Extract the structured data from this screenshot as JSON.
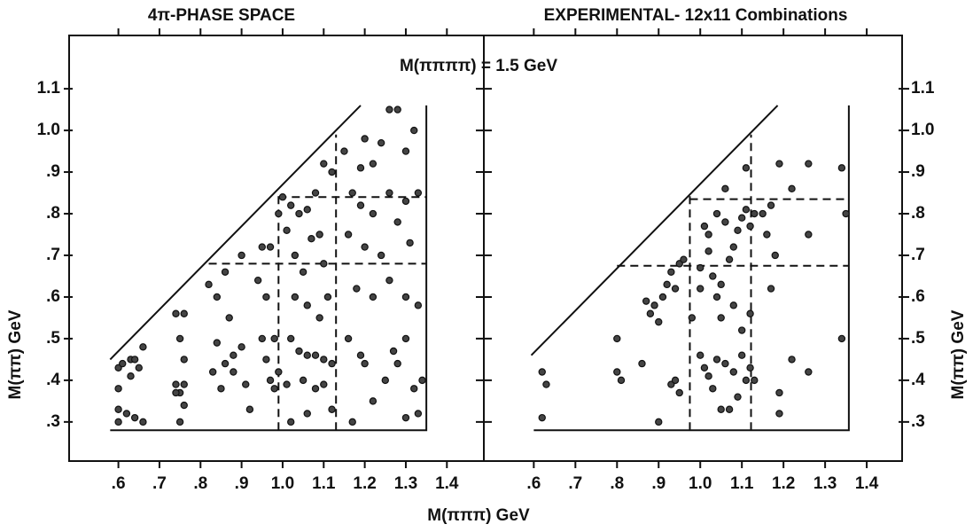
{
  "chart_data": [
    {
      "type": "scatter",
      "title": "4π-PHASE SPACE",
      "annotation": "M(ππππ) = 1.5 GeV",
      "xlabel": "M(πππ) GeV",
      "ylabel": "M(ππ) GeV",
      "xlim": [
        0.48,
        1.49
      ],
      "ylim": [
        0.206,
        1.228
      ],
      "xticks": [
        {
          "value": 0.6,
          "label": ".6"
        },
        {
          "value": 0.7,
          "label": ".7"
        },
        {
          "value": 0.8,
          "label": ".8"
        },
        {
          "value": 0.9,
          "label": ".9"
        },
        {
          "value": 1.0,
          "label": "1.0"
        },
        {
          "value": 1.1,
          "label": "1.1"
        },
        {
          "value": 1.2,
          "label": "1.2"
        },
        {
          "value": 1.3,
          "label": "1.3"
        },
        {
          "value": 1.4,
          "label": "1.4"
        }
      ],
      "yticks": [
        {
          "value": 0.3,
          "label": ".3"
        },
        {
          "value": 0.4,
          "label": ".4"
        },
        {
          "value": 0.5,
          "label": ".5"
        },
        {
          "value": 0.6,
          "label": ".6"
        },
        {
          "value": 0.7,
          "label": ".7"
        },
        {
          "value": 0.8,
          "label": ".8"
        },
        {
          "value": 0.9,
          "label": ".9"
        },
        {
          "value": 1.0,
          "label": "1.0"
        },
        {
          "value": 1.1,
          "label": "1.1"
        }
      ],
      "boundary_x": [
        0.58,
        1.19,
        null,
        0.58,
        1.35,
        1.35
      ],
      "boundary_y": [
        0.45,
        1.06,
        null,
        0.28,
        0.28,
        1.06
      ],
      "dashed": [
        {
          "x": [
            0.99,
            0.99
          ],
          "y": [
            0.28,
            0.85
          ]
        },
        {
          "x": [
            1.13,
            1.13
          ],
          "y": [
            0.28,
            0.99
          ]
        },
        {
          "x": [
            0.82,
            1.35
          ],
          "y": [
            0.68,
            0.68
          ]
        },
        {
          "x": [
            0.99,
            1.35
          ],
          "y": [
            0.84,
            0.84
          ]
        }
      ],
      "x": [
        0.6,
        0.61,
        0.63,
        0.64,
        0.66,
        0.6,
        0.63,
        0.65,
        0.6,
        0.62,
        0.64,
        0.66,
        0.6,
        0.74,
        0.76,
        0.75,
        0.76,
        0.74,
        0.76,
        0.75,
        0.76,
        0.75,
        0.74,
        0.82,
        0.84,
        0.86,
        0.83,
        0.85,
        0.84,
        0.87,
        0.88,
        0.86,
        0.9,
        0.9,
        0.92,
        0.88,
        0.91,
        0.95,
        0.97,
        0.94,
        0.96,
        0.95,
        0.98,
        0.96,
        0.99,
        0.98,
        0.97,
        0.99,
        1.0,
        1.01,
        1.02,
        1.04,
        1.06,
        1.03,
        1.05,
        1.07,
        1.09,
        1.1,
        1.12,
        1.08,
        1.1,
        1.03,
        1.06,
        1.02,
        1.04,
        1.06,
        1.08,
        1.1,
        1.12,
        1.05,
        1.08,
        1.1,
        1.12,
        1.02,
        1.06,
        1.09,
        1.11,
        1.01,
        1.15,
        1.17,
        1.19,
        1.2,
        1.22,
        1.24,
        1.26,
        1.28,
        1.3,
        1.32,
        1.19,
        1.22,
        1.26,
        1.3,
        1.33,
        1.16,
        1.2,
        1.24,
        1.28,
        1.31,
        1.18,
        1.22,
        1.26,
        1.3,
        1.33,
        1.16,
        1.19,
        1.2,
        1.22,
        1.25,
        1.28,
        1.3,
        1.32,
        1.34,
        1.3,
        1.33,
        1.17,
        1.27
      ],
      "values": [
        0.43,
        0.44,
        0.45,
        0.45,
        0.48,
        0.38,
        0.41,
        0.43,
        0.33,
        0.32,
        0.31,
        0.3,
        0.3,
        0.56,
        0.56,
        0.5,
        0.45,
        0.39,
        0.39,
        0.37,
        0.34,
        0.3,
        0.37,
        0.63,
        0.6,
        0.66,
        0.42,
        0.38,
        0.49,
        0.55,
        0.46,
        0.44,
        0.7,
        0.48,
        0.33,
        0.42,
        0.39,
        0.72,
        0.72,
        0.64,
        0.6,
        0.5,
        0.5,
        0.45,
        0.42,
        0.38,
        0.4,
        0.8,
        0.84,
        0.76,
        0.82,
        0.8,
        0.81,
        0.7,
        0.66,
        0.74,
        0.75,
        0.92,
        0.9,
        0.85,
        0.68,
        0.6,
        0.58,
        0.5,
        0.47,
        0.46,
        0.46,
        0.45,
        0.44,
        0.4,
        0.38,
        0.39,
        0.33,
        0.3,
        0.32,
        0.55,
        0.6,
        0.39,
        0.95,
        0.85,
        0.91,
        0.98,
        0.92,
        0.97,
        1.05,
        1.05,
        0.95,
        1.0,
        0.82,
        0.8,
        0.85,
        0.83,
        0.85,
        0.75,
        0.72,
        0.7,
        0.78,
        0.73,
        0.62,
        0.6,
        0.64,
        0.6,
        0.58,
        0.5,
        0.46,
        0.44,
        0.35,
        0.4,
        0.44,
        0.5,
        0.38,
        0.4,
        0.31,
        0.32,
        0.3,
        0.47
      ]
    },
    {
      "type": "scatter",
      "title": "EXPERIMENTAL- 12x11 Combinations",
      "ylabel": "M(ππ) GeV",
      "xlim": [
        0.48,
        1.485
      ],
      "ylim": [
        0.206,
        1.228
      ],
      "xticks": [
        {
          "value": 0.6,
          "label": ".6"
        },
        {
          "value": 0.7,
          "label": ".7"
        },
        {
          "value": 0.8,
          "label": ".8"
        },
        {
          "value": 0.9,
          "label": ".9"
        },
        {
          "value": 1.0,
          "label": "1.0"
        },
        {
          "value": 1.1,
          "label": "1.1"
        },
        {
          "value": 1.2,
          "label": "1.2"
        },
        {
          "value": 1.3,
          "label": "1.3"
        },
        {
          "value": 1.4,
          "label": "1.4"
        }
      ],
      "yticks": [
        {
          "value": 0.3,
          "label": ".3"
        },
        {
          "value": 0.4,
          "label": ".4"
        },
        {
          "value": 0.5,
          "label": ".5"
        },
        {
          "value": 0.6,
          "label": ".6"
        },
        {
          "value": 0.7,
          "label": ".7"
        },
        {
          "value": 0.8,
          "label": ".8"
        },
        {
          "value": 0.9,
          "label": ".9"
        },
        {
          "value": 1.0,
          "label": "1.0"
        },
        {
          "value": 1.1,
          "label": "1.1"
        }
      ],
      "boundary_x": [
        0.594,
        1.186,
        null,
        0.6,
        1.357,
        1.357
      ],
      "boundary_y": [
        0.46,
        1.06,
        null,
        0.28,
        0.28,
        1.06
      ],
      "dashed": [
        {
          "x": [
            0.975,
            0.975
          ],
          "y": [
            0.28,
            0.85
          ]
        },
        {
          "x": [
            1.122,
            1.122
          ],
          "y": [
            0.28,
            0.99
          ]
        },
        {
          "x": [
            0.8,
            1.357
          ],
          "y": [
            0.675,
            0.675
          ]
        },
        {
          "x": [
            0.975,
            1.357
          ],
          "y": [
            0.835,
            0.835
          ]
        }
      ],
      "x": [
        0.62,
        0.63,
        0.62,
        0.8,
        0.8,
        0.81,
        0.86,
        0.87,
        0.88,
        0.89,
        0.9,
        0.91,
        0.92,
        0.93,
        0.94,
        0.95,
        0.96,
        0.93,
        0.94,
        0.95,
        0.9,
        0.98,
        1.0,
        1.0,
        1.02,
        1.03,
        1.04,
        1.05,
        1.02,
        1.01,
        1.04,
        1.06,
        1.08,
        1.09,
        1.1,
        1.11,
        1.12,
        1.13,
        1.07,
        1.05,
        1.08,
        1.1,
        1.12,
        1.0,
        1.01,
        1.02,
        1.04,
        1.06,
        1.08,
        1.1,
        1.12,
        1.03,
        1.05,
        1.07,
        1.09,
        1.11,
        1.13,
        1.06,
        1.11,
        1.15,
        1.16,
        1.17,
        1.18,
        1.19,
        1.22,
        1.26,
        1.26,
        1.34,
        1.35,
        1.17,
        1.22,
        1.26,
        1.34,
        1.19,
        1.19
      ],
      "values": [
        0.42,
        0.39,
        0.31,
        0.5,
        0.42,
        0.4,
        0.44,
        0.59,
        0.56,
        0.58,
        0.54,
        0.6,
        0.63,
        0.66,
        0.62,
        0.68,
        0.69,
        0.39,
        0.4,
        0.37,
        0.3,
        0.55,
        0.62,
        0.67,
        0.71,
        0.65,
        0.6,
        0.63,
        0.75,
        0.77,
        0.8,
        0.78,
        0.72,
        0.76,
        0.79,
        0.81,
        0.77,
        0.8,
        0.69,
        0.55,
        0.58,
        0.52,
        0.56,
        0.46,
        0.43,
        0.41,
        0.45,
        0.44,
        0.42,
        0.46,
        0.43,
        0.38,
        0.33,
        0.33,
        0.36,
        0.4,
        0.4,
        0.86,
        0.91,
        0.8,
        0.75,
        0.82,
        0.7,
        0.92,
        0.86,
        0.92,
        0.75,
        0.91,
        0.8,
        0.62,
        0.45,
        0.42,
        0.5,
        0.37,
        0.32
      ]
    }
  ]
}
